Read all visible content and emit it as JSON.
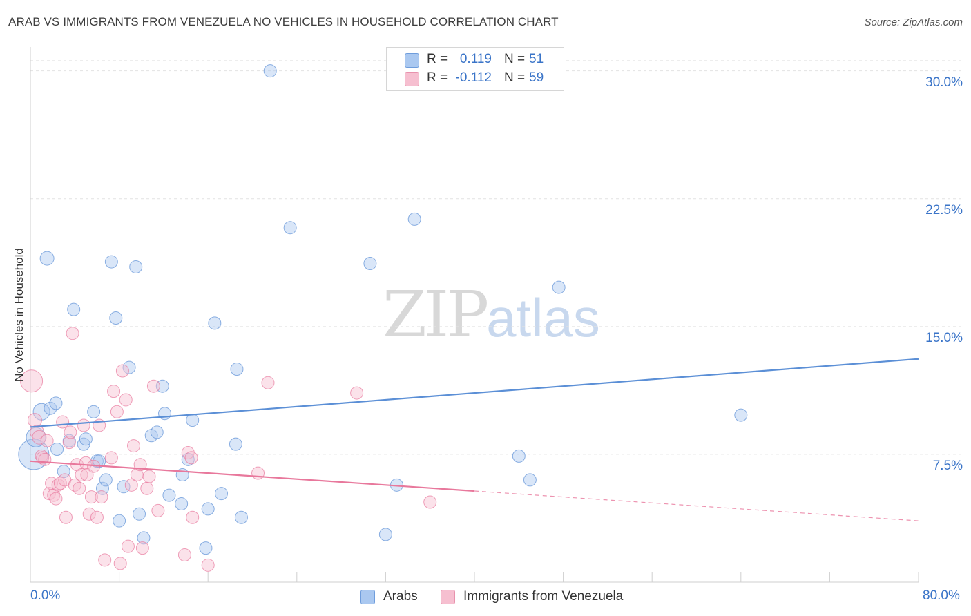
{
  "header": {
    "title": "ARAB VS IMMIGRANTS FROM VENEZUELA NO VEHICLES IN HOUSEHOLD CORRELATION CHART",
    "source": "Source: ZipAtlas.com"
  },
  "watermark": {
    "zip": "ZIP",
    "atlas": "atlas"
  },
  "legend_top": {
    "rows": [
      {
        "r_label": "R =",
        "r_value": "0.119",
        "n_label": "N =",
        "n_value": "51",
        "color": "#aac8f0"
      },
      {
        "r_label": "R =",
        "r_value": "-0.112",
        "n_label": "N =",
        "n_value": "59",
        "color": "#f6bfd0"
      }
    ]
  },
  "chart_data": {
    "type": "scatter",
    "title": "ARAB VS IMMIGRANTS FROM VENEZUELA NO VEHICLES IN HOUSEHOLD CORRELATION CHART",
    "xlabel": "",
    "ylabel": "No Vehicles in Household",
    "xlim": [
      0,
      80
    ],
    "ylim": [
      0,
      31
    ],
    "x_tick_labels": [
      "0.0%",
      "80.0%"
    ],
    "y_ticks": [
      7.5,
      15.0,
      22.5,
      30.0
    ],
    "y_tick_labels": [
      "7.5%",
      "15.0%",
      "22.5%",
      "30.0%"
    ],
    "grid": true,
    "legend_position": "top-center",
    "series": [
      {
        "name": "Arabs",
        "color": "#5b8fd6",
        "fill": "#aac8f0",
        "r": 0.119,
        "n": 51,
        "trend": {
          "x": [
            0,
            80
          ],
          "y": [
            9.1,
            13.1
          ],
          "dashed_from": null
        },
        "points": [
          [
            0.3,
            7.5,
            22
          ],
          [
            0.5,
            8.5,
            14
          ],
          [
            1.0,
            10.0,
            12
          ],
          [
            1.5,
            19.0,
            10
          ],
          [
            1.8,
            10.2,
            9
          ],
          [
            2.3,
            10.5,
            9
          ],
          [
            2.4,
            7.8,
            9
          ],
          [
            3.0,
            6.5,
            9
          ],
          [
            3.5,
            8.3,
            9
          ],
          [
            3.9,
            16.0,
            9
          ],
          [
            4.8,
            8.1,
            9
          ],
          [
            5.0,
            8.4,
            9
          ],
          [
            5.7,
            10.0,
            9
          ],
          [
            6.0,
            7.1,
            9
          ],
          [
            6.2,
            7.1,
            9
          ],
          [
            6.5,
            5.5,
            9
          ],
          [
            6.8,
            6.0,
            9
          ],
          [
            7.3,
            18.8,
            9
          ],
          [
            7.7,
            15.5,
            9
          ],
          [
            8.0,
            3.6,
            9
          ],
          [
            8.4,
            5.6,
            9
          ],
          [
            8.9,
            12.6,
            9
          ],
          [
            9.5,
            18.5,
            9
          ],
          [
            9.8,
            4.0,
            9
          ],
          [
            10.2,
            2.6,
            9
          ],
          [
            10.9,
            8.6,
            9
          ],
          [
            11.4,
            8.8,
            9
          ],
          [
            11.9,
            11.5,
            9
          ],
          [
            12.1,
            9.9,
            9
          ],
          [
            12.5,
            5.1,
            9
          ],
          [
            13.6,
            4.6,
            9
          ],
          [
            13.7,
            6.3,
            9
          ],
          [
            14.2,
            7.2,
            9
          ],
          [
            14.6,
            9.5,
            9
          ],
          [
            16.0,
            4.3,
            9
          ],
          [
            15.8,
            2.0,
            9
          ],
          [
            16.6,
            15.2,
            9
          ],
          [
            17.2,
            5.2,
            9
          ],
          [
            18.5,
            8.1,
            9
          ],
          [
            18.6,
            12.5,
            9
          ],
          [
            19.0,
            3.8,
            9
          ],
          [
            21.6,
            30.0,
            9
          ],
          [
            23.4,
            20.8,
            9
          ],
          [
            30.6,
            18.7,
            9
          ],
          [
            32.0,
            2.8,
            9
          ],
          [
            33.0,
            5.7,
            9
          ],
          [
            34.6,
            21.3,
            9
          ],
          [
            44.0,
            7.4,
            9
          ],
          [
            45.0,
            6.0,
            9
          ],
          [
            47.6,
            17.3,
            9
          ],
          [
            64.0,
            9.8,
            9
          ]
        ]
      },
      {
        "name": "Immigrants from Venezuela",
        "color": "#e8789c",
        "fill": "#f6bfd0",
        "r": -0.112,
        "n": 59,
        "trend": {
          "x": [
            0,
            80
          ],
          "y": [
            7.1,
            3.6
          ],
          "dashed_from": 40
        },
        "points": [
          [
            0.1,
            11.8,
            16
          ],
          [
            0.4,
            9.5,
            10
          ],
          [
            0.6,
            8.8,
            10
          ],
          [
            0.8,
            8.5,
            10
          ],
          [
            1.0,
            7.4,
            9
          ],
          [
            1.1,
            7.3,
            9
          ],
          [
            1.3,
            7.2,
            9
          ],
          [
            1.5,
            8.3,
            9
          ],
          [
            1.7,
            5.2,
            9
          ],
          [
            1.9,
            5.8,
            9
          ],
          [
            2.1,
            5.1,
            9
          ],
          [
            2.3,
            4.9,
            9
          ],
          [
            2.5,
            5.7,
            9
          ],
          [
            2.7,
            5.8,
            9
          ],
          [
            2.9,
            9.4,
            9
          ],
          [
            3.1,
            6.0,
            9
          ],
          [
            3.2,
            3.8,
            9
          ],
          [
            3.5,
            8.2,
            9
          ],
          [
            3.6,
            8.8,
            9
          ],
          [
            3.8,
            14.6,
            9
          ],
          [
            4.0,
            5.7,
            9
          ],
          [
            4.2,
            6.9,
            9
          ],
          [
            4.4,
            5.5,
            9
          ],
          [
            4.6,
            6.3,
            9
          ],
          [
            4.8,
            9.2,
            9
          ],
          [
            5.0,
            7.0,
            9
          ],
          [
            5.1,
            6.3,
            9
          ],
          [
            5.3,
            4.0,
            9
          ],
          [
            5.5,
            5.0,
            9
          ],
          [
            5.7,
            6.8,
            9
          ],
          [
            6.0,
            3.8,
            9
          ],
          [
            6.2,
            9.2,
            9
          ],
          [
            6.4,
            5.0,
            9
          ],
          [
            6.7,
            1.3,
            9
          ],
          [
            7.3,
            7.3,
            9
          ],
          [
            7.5,
            11.2,
            9
          ],
          [
            7.8,
            10.0,
            9
          ],
          [
            8.1,
            1.1,
            9
          ],
          [
            8.3,
            12.4,
            9
          ],
          [
            8.6,
            10.7,
            9
          ],
          [
            8.8,
            2.1,
            9
          ],
          [
            9.1,
            5.7,
            9
          ],
          [
            9.3,
            8.0,
            9
          ],
          [
            9.6,
            6.3,
            9
          ],
          [
            9.9,
            6.9,
            9
          ],
          [
            10.1,
            2.0,
            9
          ],
          [
            10.5,
            5.5,
            9
          ],
          [
            10.7,
            6.2,
            9
          ],
          [
            11.1,
            11.5,
            9
          ],
          [
            11.5,
            4.2,
            9
          ],
          [
            13.9,
            1.6,
            9
          ],
          [
            14.2,
            7.6,
            9
          ],
          [
            14.5,
            7.3,
            9
          ],
          [
            14.6,
            3.8,
            9
          ],
          [
            16.0,
            1.0,
            9
          ],
          [
            20.5,
            6.4,
            9
          ],
          [
            21.4,
            11.7,
            9
          ],
          [
            29.4,
            11.1,
            9
          ],
          [
            36.0,
            4.7,
            9
          ]
        ]
      }
    ]
  }
}
